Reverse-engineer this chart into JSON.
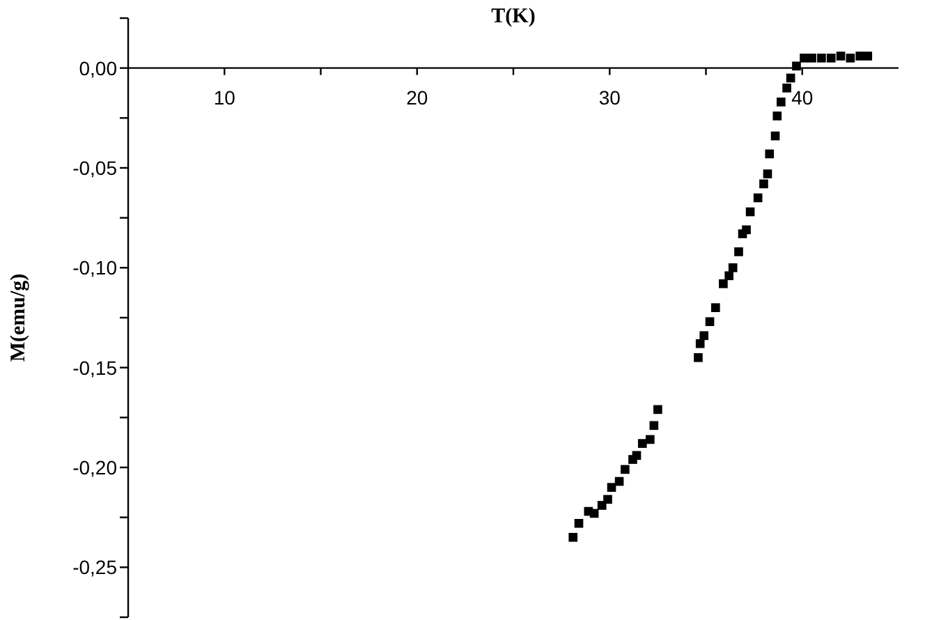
{
  "chart_data": {
    "type": "scatter",
    "xlabel": "T(K)",
    "ylabel": "M(emu/g)",
    "marker": "square",
    "xlim": [
      5,
      45
    ],
    "ylim": [
      -0.275,
      0.025
    ],
    "xticks": [
      10,
      {
        "value": 15,
        "label": null
      },
      20,
      {
        "value": 25,
        "label": null
      },
      30,
      {
        "value": 35,
        "label": null
      },
      40
    ],
    "yticks": [
      {
        "value": -0.275,
        "label": null
      },
      {
        "value": -0.25,
        "label": "-0,25"
      },
      {
        "value": -0.225,
        "label": null
      },
      {
        "value": -0.2,
        "label": "-0,20"
      },
      {
        "value": -0.175,
        "label": null
      },
      {
        "value": -0.15,
        "label": "-0,15"
      },
      {
        "value": -0.125,
        "label": null
      },
      {
        "value": -0.1,
        "label": "-0,10"
      },
      {
        "value": -0.075,
        "label": null
      },
      {
        "value": -0.05,
        "label": "-0,05"
      },
      {
        "value": -0.025,
        "label": null
      },
      {
        "value": 0,
        "label": "0,00"
      },
      {
        "value": 0.025,
        "label": null
      }
    ],
    "series": [
      {
        "color": "#000000",
        "x": [
          28.1,
          28.4,
          28.9,
          29.2,
          29.6,
          29.9,
          30.1,
          30.5,
          30.8,
          31.2,
          31.4,
          31.7,
          32.1,
          32.3,
          32.5,
          34.6,
          34.7,
          34.9,
          35.2,
          35.5,
          35.9,
          36.2,
          36.4,
          36.7,
          36.9,
          37.1,
          37.3,
          37.7,
          38.0,
          38.2,
          38.3,
          38.6,
          38.7,
          38.9,
          39.2,
          39.4,
          39.7,
          40.1,
          40.5,
          41.0,
          41.5,
          42.0,
          42.5,
          43.0,
          43.4
        ],
        "values": [
          -0.235,
          -0.228,
          -0.222,
          -0.223,
          -0.219,
          -0.216,
          -0.21,
          -0.207,
          -0.201,
          -0.196,
          -0.194,
          -0.188,
          -0.186,
          -0.179,
          -0.171,
          -0.145,
          -0.138,
          -0.134,
          -0.127,
          -0.12,
          -0.108,
          -0.104,
          -0.1,
          -0.092,
          -0.083,
          -0.081,
          -0.072,
          -0.065,
          -0.058,
          -0.053,
          -0.043,
          -0.034,
          -0.024,
          -0.017,
          -0.01,
          -0.005,
          0.001,
          0.005,
          0.005,
          0.005,
          0.005,
          0.006,
          0.005,
          0.006,
          0.006
        ]
      }
    ]
  }
}
